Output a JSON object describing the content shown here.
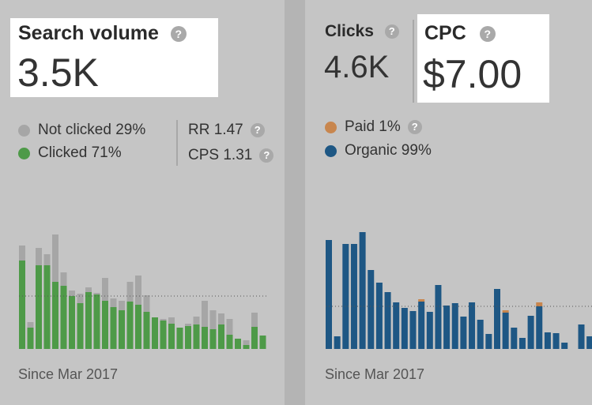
{
  "help_icon_glyph": "?",
  "search_volume": {
    "label": "Search volume",
    "value": "3.5K",
    "legend": [
      {
        "label": "Not clicked 29%",
        "color": "#a6a6a6"
      },
      {
        "label": "Clicked 71%",
        "color": "#4e9a48"
      }
    ],
    "rr": "RR 1.47",
    "cps": "CPS 1.31",
    "since": "Since Mar 2017"
  },
  "clicks": {
    "label": "Clicks",
    "value": "4.6K",
    "cpc_label": "CPC",
    "cpc_value": "$7.00",
    "legend": [
      {
        "label": "Paid 1%",
        "color": "#c8864e"
      },
      {
        "label": "Organic 99%",
        "color": "#1e5784"
      }
    ],
    "since": "Since Mar 2017"
  },
  "chart_data": [
    {
      "type": "bar",
      "stacked": true,
      "series": [
        {
          "name": "Clicked",
          "color": "#4e9a48",
          "values": [
            112,
            27,
            106,
            106,
            85,
            80,
            67,
            58,
            72,
            69,
            61,
            53,
            49,
            60,
            56,
            47,
            40,
            36,
            32,
            27,
            29,
            31,
            28,
            25,
            31,
            18,
            13,
            5,
            28,
            17
          ]
        },
        {
          "name": "Not clicked",
          "color": "#a6a6a6",
          "values": [
            19,
            7,
            22,
            14,
            60,
            17,
            7,
            12,
            6,
            2,
            29,
            11,
            12,
            25,
            37,
            21,
            0,
            2,
            8,
            0,
            3,
            10,
            33,
            24,
            14,
            20,
            0,
            6,
            18,
            0
          ]
        }
      ],
      "reference_line": 67,
      "ylim": [
        0,
        190
      ],
      "grid": false
    },
    {
      "type": "bar",
      "stacked": true,
      "series": [
        {
          "name": "Organic",
          "color": "#1e5784",
          "values": [
            138,
            16,
            133,
            133,
            148,
            100,
            84,
            72,
            59,
            52,
            48,
            60,
            47,
            81,
            55,
            58,
            41,
            59,
            37,
            19,
            76,
            46,
            27,
            14,
            42,
            54,
            21,
            20,
            8,
            0,
            31,
            16
          ]
        },
        {
          "name": "Paid",
          "color": "#c8864e",
          "values": [
            0,
            0,
            0,
            0,
            0,
            0,
            0,
            0,
            0,
            0,
            0,
            3,
            0,
            0,
            0,
            0,
            0,
            0,
            0,
            0,
            0,
            3,
            0,
            0,
            0,
            5,
            0,
            0,
            0,
            0,
            0,
            0
          ]
        }
      ],
      "reference_line": 54,
      "ylim": [
        0,
        190
      ],
      "grid": false
    }
  ]
}
